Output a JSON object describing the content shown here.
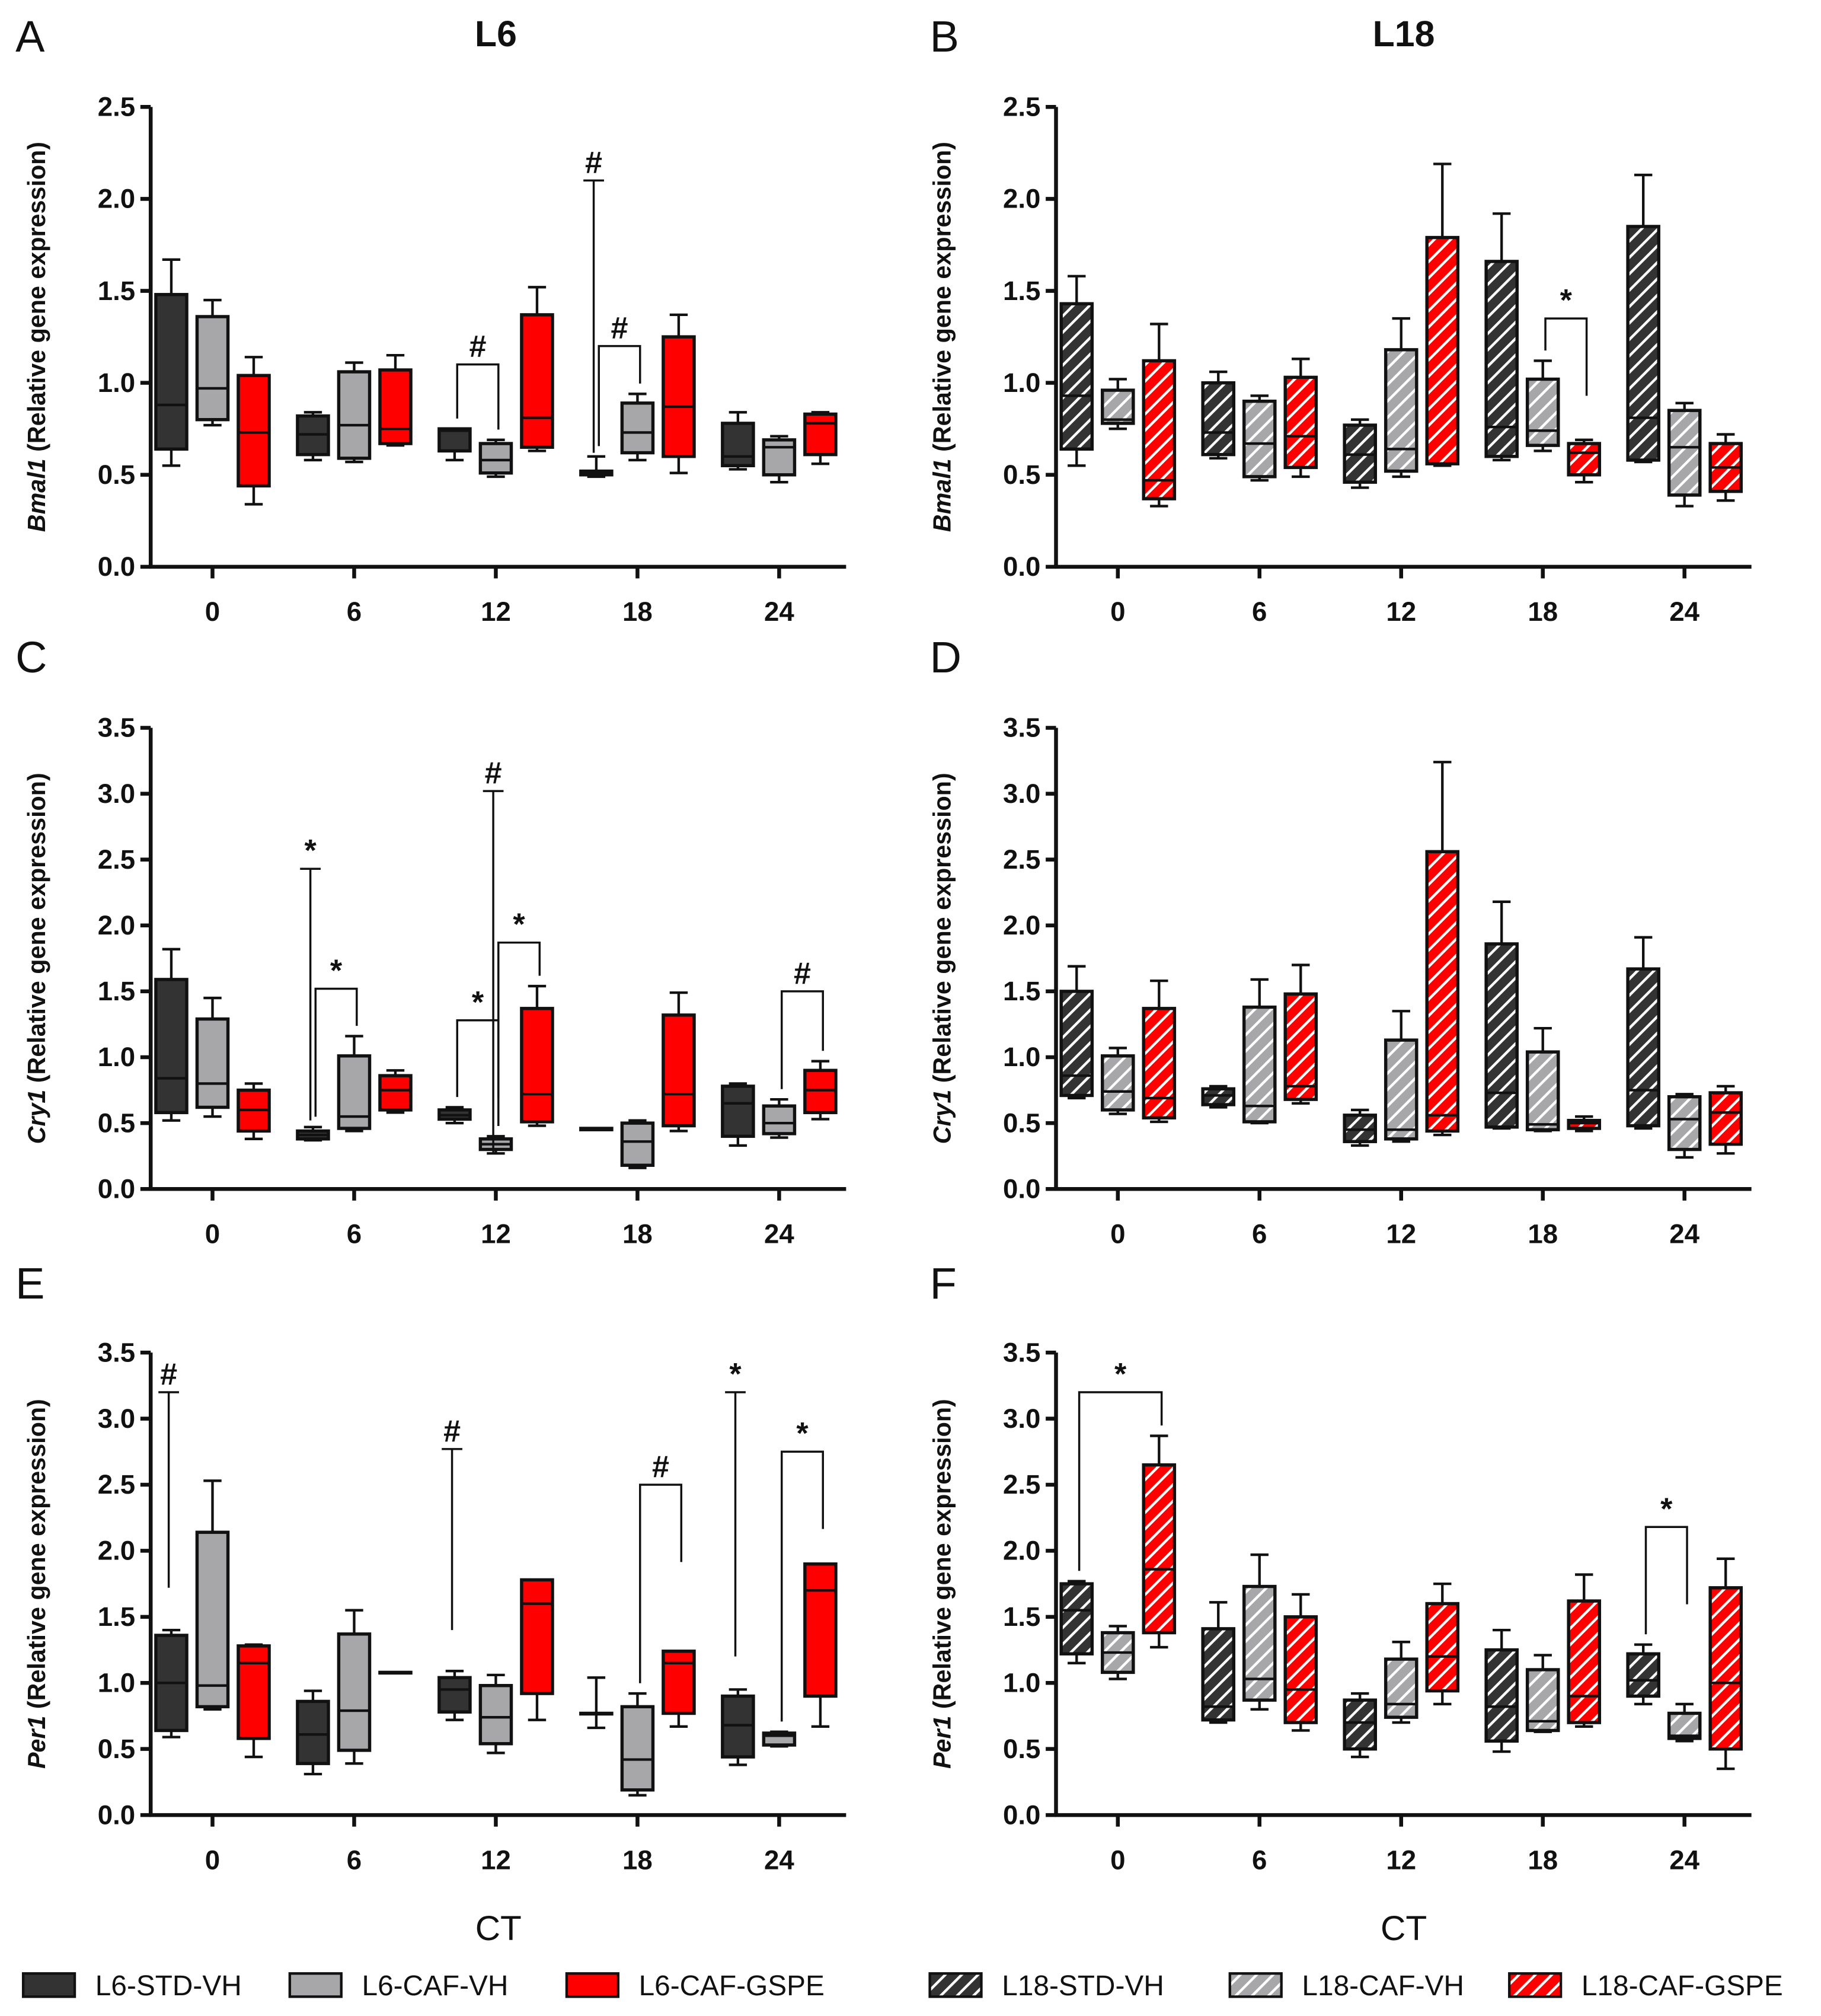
{
  "legend": [
    {
      "name": "L6-STD-VH",
      "color": "#333333",
      "hatched": false
    },
    {
      "name": "L6-CAF-VH",
      "color": "#a7a7aa",
      "hatched": false
    },
    {
      "name": "L6-CAF-GSPE",
      "color": "#ff0000",
      "hatched": false
    },
    {
      "name": "L18-STD-VH",
      "color": "#333333",
      "hatched": true
    },
    {
      "name": "L18-CAF-VH",
      "color": "#a7a7aa",
      "hatched": true
    },
    {
      "name": "L18-CAF-GSPE",
      "color": "#ff0000",
      "hatched": true
    }
  ],
  "chart_data": [
    {
      "panel": "A",
      "title": "L6",
      "type": "box",
      "gene": "Bmal1",
      "ylabel": " (Relative gene expression)",
      "ylim": [
        0,
        2.5
      ],
      "ytick_step": 0.5,
      "categories": [
        "0",
        "6",
        "12",
        "18",
        "24"
      ],
      "xlabel": "",
      "series": [
        {
          "name": "L6-STD-VH",
          "color": "#333333",
          "hatched": false,
          "boxes": [
            [
              0.55,
              0.64,
              0.88,
              1.48,
              1.67
            ],
            [
              0.58,
              0.61,
              0.72,
              0.82,
              0.84
            ],
            [
              0.58,
              0.63,
              0.74,
              0.75,
              0.75
            ],
            [
              0.49,
              0.5,
              0.51,
              0.52,
              0.6
            ],
            [
              0.53,
              0.55,
              0.6,
              0.78,
              0.84
            ]
          ]
        },
        {
          "name": "L6-CAF-VH",
          "color": "#a7a7aa",
          "hatched": false,
          "boxes": [
            [
              0.77,
              0.8,
              0.97,
              1.36,
              1.45
            ],
            [
              0.57,
              0.59,
              0.77,
              1.06,
              1.11
            ],
            [
              0.49,
              0.51,
              0.58,
              0.67,
              0.69
            ],
            [
              0.58,
              0.62,
              0.73,
              0.89,
              0.94
            ],
            [
              0.46,
              0.5,
              0.65,
              0.69,
              0.71
            ]
          ]
        },
        {
          "name": "L6-CAF-GSPE",
          "color": "#ff0000",
          "hatched": false,
          "boxes": [
            [
              0.34,
              0.44,
              0.73,
              1.04,
              1.14
            ],
            [
              0.66,
              0.67,
              0.75,
              1.07,
              1.15
            ],
            [
              0.63,
              0.65,
              0.81,
              1.37,
              1.52
            ],
            [
              0.51,
              0.6,
              0.87,
              1.25,
              1.37
            ],
            [
              0.56,
              0.61,
              0.78,
              0.83,
              0.84
            ]
          ]
        }
      ],
      "annotations": [
        {
          "type": "bracket",
          "ct": 2,
          "from": 0,
          "to": 1,
          "y": 1.1,
          "label": "#"
        },
        {
          "type": "line",
          "ct": 3,
          "group": 0,
          "from": 0.62,
          "to": 2.1,
          "label": "#"
        },
        {
          "type": "bracket",
          "ct": 3,
          "from": 0,
          "to": 1,
          "y": 1.2,
          "label": "#"
        }
      ]
    },
    {
      "panel": "B",
      "title": "L18",
      "type": "box",
      "gene": "Bmal1",
      "ylabel": " (Relative gene expression)",
      "ylim": [
        0,
        2.5
      ],
      "ytick_step": 0.5,
      "categories": [
        "0",
        "6",
        "12",
        "18",
        "24"
      ],
      "xlabel": "",
      "series": [
        {
          "name": "L18-STD-VH",
          "color": "#333333",
          "hatched": true,
          "boxes": [
            [
              0.55,
              0.64,
              0.93,
              1.43,
              1.58
            ],
            [
              0.59,
              0.61,
              0.73,
              1.0,
              1.06
            ],
            [
              0.43,
              0.46,
              0.61,
              0.77,
              0.8
            ],
            [
              0.58,
              0.6,
              0.76,
              1.66,
              1.92
            ],
            [
              0.57,
              0.58,
              0.81,
              1.85,
              2.13
            ]
          ]
        },
        {
          "name": "L18-CAF-VH",
          "color": "#a7a7aa",
          "hatched": true,
          "boxes": [
            [
              0.75,
              0.78,
              0.8,
              0.96,
              1.02
            ],
            [
              0.47,
              0.49,
              0.67,
              0.9,
              0.93
            ],
            [
              0.49,
              0.52,
              0.64,
              1.18,
              1.35
            ],
            [
              0.63,
              0.66,
              0.74,
              1.02,
              1.12
            ],
            [
              0.33,
              0.39,
              0.65,
              0.85,
              0.89
            ]
          ]
        },
        {
          "name": "L18-CAF-GSPE",
          "color": "#ff0000",
          "hatched": true,
          "boxes": [
            [
              0.33,
              0.37,
              0.47,
              1.12,
              1.32
            ],
            [
              0.49,
              0.54,
              0.71,
              1.03,
              1.13
            ],
            [
              0.55,
              0.56,
              0.56,
              1.79,
              2.19
            ],
            [
              0.46,
              0.5,
              0.62,
              0.67,
              0.69
            ],
            [
              0.36,
              0.41,
              0.54,
              0.67,
              0.72
            ]
          ]
        }
      ],
      "annotations": [
        {
          "type": "bracket",
          "ct": 3,
          "from": 1,
          "to": 2,
          "y": 1.35,
          "label": "*"
        }
      ]
    },
    {
      "panel": "C",
      "title": "",
      "type": "box",
      "gene": "Cry1",
      "ylabel": " (Relative gene expression)",
      "ylim": [
        0,
        3.5
      ],
      "ytick_step": 0.5,
      "categories": [
        "0",
        "6",
        "12",
        "18",
        "24"
      ],
      "xlabel": "",
      "series": [
        {
          "name": "L6-STD-VH",
          "color": "#333333",
          "hatched": false,
          "boxes": [
            [
              0.52,
              0.58,
              0.84,
              1.59,
              1.82
            ],
            [
              0.37,
              0.38,
              0.41,
              0.44,
              0.47
            ],
            [
              0.5,
              0.53,
              0.56,
              0.6,
              0.62
            ],
            [
              0.45,
              0.45,
              0.45,
              0.46,
              0.46
            ],
            [
              0.33,
              0.4,
              0.65,
              0.78,
              0.8
            ]
          ]
        },
        {
          "name": "L6-CAF-VH",
          "color": "#a7a7aa",
          "hatched": false,
          "boxes": [
            [
              0.55,
              0.62,
              0.8,
              1.29,
              1.45
            ],
            [
              0.44,
              0.46,
              0.55,
              1.01,
              1.16
            ],
            [
              0.27,
              0.3,
              0.34,
              0.38,
              0.4
            ],
            [
              0.16,
              0.18,
              0.36,
              0.5,
              0.52
            ],
            [
              0.39,
              0.42,
              0.5,
              0.63,
              0.68
            ]
          ]
        },
        {
          "name": "L6-CAF-GSPE",
          "color": "#ff0000",
          "hatched": false,
          "boxes": [
            [
              0.38,
              0.44,
              0.6,
              0.75,
              0.8
            ],
            [
              0.58,
              0.6,
              0.75,
              0.86,
              0.9
            ],
            [
              0.48,
              0.51,
              0.72,
              1.37,
              1.54
            ],
            [
              0.44,
              0.48,
              0.72,
              1.32,
              1.49
            ],
            [
              0.53,
              0.58,
              0.75,
              0.9,
              0.97
            ]
          ]
        }
      ],
      "annotations": [
        {
          "type": "line",
          "ct": 1,
          "group": 0,
          "from": 0.52,
          "to": 2.43,
          "label": "*"
        },
        {
          "type": "bracket",
          "ct": 1,
          "from": 0,
          "to": 1,
          "y": 1.52,
          "label": "*"
        },
        {
          "type": "bracket",
          "ct": 2,
          "from": 0,
          "to": 1,
          "y": 1.28,
          "label": "*"
        },
        {
          "type": "line",
          "ct": 2,
          "group": 1,
          "from": 0.27,
          "to": 3.02,
          "label": "#"
        },
        {
          "type": "bracket",
          "ct": 2,
          "from": 1,
          "to": 2,
          "y": 1.87,
          "label": "*"
        },
        {
          "type": "bracket",
          "ct": 4,
          "from": 1,
          "to": 2,
          "y": 1.5,
          "label": "#"
        }
      ]
    },
    {
      "panel": "D",
      "title": "",
      "type": "box",
      "gene": "Cry1",
      "ylabel": " (Relative gene expression)",
      "ylim": [
        0,
        3.5
      ],
      "ytick_step": 0.5,
      "categories": [
        "0",
        "6",
        "12",
        "18",
        "24"
      ],
      "xlabel": "",
      "series": [
        {
          "name": "L18-STD-VH",
          "color": "#333333",
          "hatched": true,
          "boxes": [
            [
              0.69,
              0.71,
              0.86,
              1.5,
              1.69
            ],
            [
              0.62,
              0.64,
              0.71,
              0.76,
              0.78
            ],
            [
              0.33,
              0.36,
              0.45,
              0.56,
              0.6
            ],
            [
              0.46,
              0.47,
              0.73,
              1.86,
              2.18
            ],
            [
              0.46,
              0.48,
              0.75,
              1.67,
              1.91
            ]
          ]
        },
        {
          "name": "L18-CAF-VH",
          "color": "#a7a7aa",
          "hatched": true,
          "boxes": [
            [
              0.57,
              0.6,
              0.74,
              1.01,
              1.07
            ],
            [
              0.5,
              0.51,
              0.63,
              1.38,
              1.59
            ],
            [
              0.36,
              0.38,
              0.45,
              1.13,
              1.35
            ],
            [
              0.44,
              0.45,
              0.49,
              1.04,
              1.22
            ],
            [
              0.24,
              0.3,
              0.53,
              0.7,
              0.72
            ]
          ]
        },
        {
          "name": "L18-CAF-GSPE",
          "color": "#ff0000",
          "hatched": true,
          "boxes": [
            [
              0.51,
              0.54,
              0.69,
              1.37,
              1.58
            ],
            [
              0.65,
              0.68,
              0.78,
              1.48,
              1.7
            ],
            [
              0.41,
              0.44,
              0.56,
              2.56,
              3.24
            ],
            [
              0.44,
              0.46,
              0.5,
              0.52,
              0.55
            ],
            [
              0.27,
              0.34,
              0.58,
              0.73,
              0.78
            ]
          ]
        }
      ],
      "annotations": []
    },
    {
      "panel": "E",
      "title": "",
      "type": "box",
      "gene": "Per1",
      "ylabel": " (Relative gene expression)",
      "ylim": [
        0,
        3.5
      ],
      "ytick_step": 0.5,
      "categories": [
        "0",
        "6",
        "12",
        "18",
        "24"
      ],
      "xlabel": "CT",
      "series": [
        {
          "name": "L6-STD-VH",
          "color": "#333333",
          "hatched": false,
          "boxes": [
            [
              0.59,
              0.64,
              1.0,
              1.36,
              1.4
            ],
            [
              0.31,
              0.39,
              0.61,
              0.86,
              0.94
            ],
            [
              0.72,
              0.78,
              0.95,
              1.04,
              1.09
            ],
            [
              0.66,
              0.77,
              0.77,
              0.77,
              1.04
            ],
            [
              0.38,
              0.44,
              0.68,
              0.9,
              0.95
            ]
          ]
        },
        {
          "name": "L6-CAF-VH",
          "color": "#a7a7aa",
          "hatched": false,
          "boxes": [
            [
              0.8,
              0.82,
              0.98,
              2.14,
              2.53
            ],
            [
              0.39,
              0.49,
              0.79,
              1.37,
              1.55
            ],
            [
              0.47,
              0.54,
              0.74,
              0.98,
              1.06
            ],
            [
              0.15,
              0.19,
              0.42,
              0.82,
              0.92
            ],
            [
              0.52,
              0.53,
              0.6,
              0.62,
              0.63
            ]
          ]
        },
        {
          "name": "L6-CAF-GSPE",
          "color": "#ff0000",
          "hatched": false,
          "boxes": [
            [
              0.44,
              0.58,
              1.15,
              1.28,
              1.29
            ],
            [
              1.08,
              1.08,
              1.08,
              1.08,
              1.08
            ],
            [
              0.72,
              0.92,
              1.6,
              1.78,
              1.78
            ],
            [
              0.67,
              0.77,
              1.15,
              1.24,
              1.24
            ],
            [
              0.67,
              0.9,
              1.7,
              1.9,
              1.9
            ]
          ]
        }
      ],
      "annotations": [
        {
          "type": "line",
          "ct": 0,
          "group": 0,
          "from": 1.72,
          "to": 3.2,
          "label": "#"
        },
        {
          "type": "line",
          "ct": 2,
          "group": 0,
          "from": 1.4,
          "to": 2.77,
          "label": "#"
        },
        {
          "type": "bracket",
          "ct": 3,
          "from": 1,
          "to": 2,
          "y": 2.5,
          "label": "#"
        },
        {
          "type": "line",
          "ct": 4,
          "group": 0,
          "from": 1.2,
          "to": 3.2,
          "label": "*"
        },
        {
          "type": "bracket",
          "ct": 4,
          "from": 1,
          "to": 2,
          "y": 2.75,
          "label": "*"
        }
      ]
    },
    {
      "panel": "F",
      "title": "",
      "type": "box",
      "gene": "Per1",
      "ylabel": " (Relative gene expression)",
      "ylim": [
        0,
        3.5
      ],
      "ytick_step": 0.5,
      "categories": [
        "0",
        "6",
        "12",
        "18",
        "24"
      ],
      "xlabel": "CT",
      "series": [
        {
          "name": "L18-STD-VH",
          "color": "#333333",
          "hatched": true,
          "boxes": [
            [
              1.15,
              1.22,
              1.55,
              1.75,
              1.77
            ],
            [
              0.7,
              0.72,
              0.82,
              1.41,
              1.61
            ],
            [
              0.44,
              0.5,
              0.7,
              0.87,
              0.92
            ],
            [
              0.48,
              0.56,
              0.82,
              1.25,
              1.4
            ],
            [
              0.84,
              0.9,
              1.02,
              1.22,
              1.29
            ]
          ]
        },
        {
          "name": "L18-CAF-VH",
          "color": "#a7a7aa",
          "hatched": true,
          "boxes": [
            [
              1.03,
              1.08,
              1.23,
              1.38,
              1.43
            ],
            [
              0.8,
              0.87,
              1.03,
              1.73,
              1.97
            ],
            [
              0.7,
              0.74,
              0.84,
              1.18,
              1.31
            ],
            [
              0.63,
              0.64,
              0.71,
              1.1,
              1.21
            ],
            [
              0.56,
              0.58,
              0.6,
              0.77,
              0.84
            ]
          ]
        },
        {
          "name": "L18-CAF-GSPE",
          "color": "#ff0000",
          "hatched": true,
          "boxes": [
            [
              1.27,
              1.38,
              1.86,
              2.65,
              2.87
            ],
            [
              0.64,
              0.7,
              0.95,
              1.5,
              1.67
            ],
            [
              0.84,
              0.94,
              1.2,
              1.6,
              1.75
            ],
            [
              0.67,
              0.7,
              0.9,
              1.62,
              1.82
            ],
            [
              0.35,
              0.5,
              1.0,
              1.72,
              1.94
            ]
          ]
        }
      ],
      "annotations": [
        {
          "type": "bracket",
          "ct": 0,
          "from": 0,
          "to": 2,
          "y": 3.2,
          "label": "*"
        },
        {
          "type": "bracket",
          "ct": 4,
          "from": 0,
          "to": 1,
          "y": 2.18,
          "label": "*"
        }
      ]
    }
  ]
}
